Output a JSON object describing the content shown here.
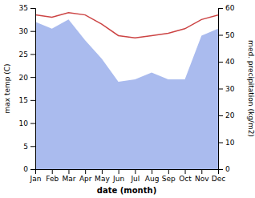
{
  "chart_data": {
    "type": "line",
    "categories": [
      "Jan",
      "Feb",
      "Mar",
      "Apr",
      "May",
      "Jun",
      "Jul",
      "Aug",
      "Sep",
      "Oct",
      "Nov",
      "Dec"
    ],
    "series": [
      {
        "type": "area",
        "color": "#aabbee",
        "values": [
          32.0,
          30.5,
          32.5,
          28.0,
          24.0,
          19.0,
          19.5,
          21.0,
          19.5,
          19.5,
          29.0,
          30.5
        ]
      },
      {
        "type": "line",
        "color": "#cc4444",
        "values": [
          33.5,
          33.0,
          34.0,
          33.5,
          31.5,
          29.0,
          28.5,
          29.0,
          29.5,
          30.5,
          32.5,
          33.5
        ]
      }
    ],
    "xlabel": "date (month)",
    "ylabel": "max temp (C)",
    "y2label": "med. precipitation (kg/m2)",
    "ylim": [
      0,
      35
    ],
    "yticks": [
      0,
      5,
      10,
      15,
      20,
      25,
      30,
      35
    ],
    "y2lim": [
      0,
      60
    ],
    "y2ticks": [
      0,
      10,
      20,
      30,
      40,
      50,
      60
    ]
  }
}
